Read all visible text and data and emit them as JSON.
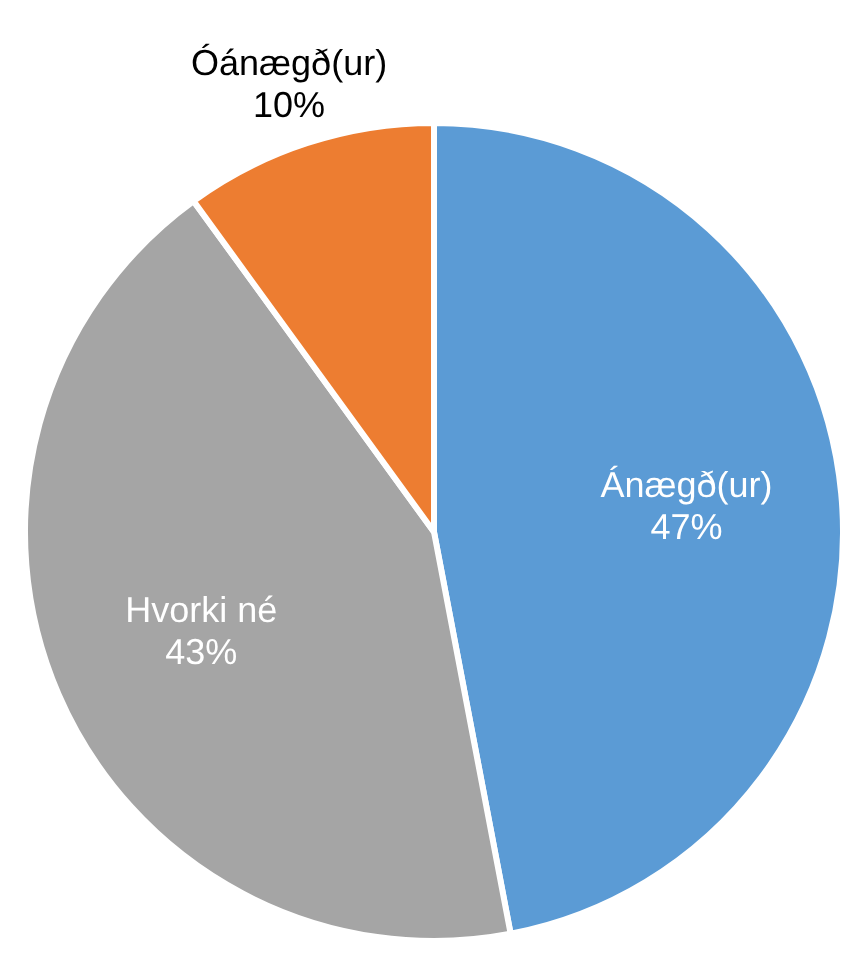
{
  "chart_data": {
    "type": "pie",
    "categories": [
      "Ánægð(ur)",
      "Hvorki né",
      "Óánægð(ur)"
    ],
    "values": [
      47,
      43,
      10
    ],
    "colors": [
      "#5b9bd5",
      "#a5a5a5",
      "#ed7d31"
    ],
    "value_labels": [
      "47%",
      "43%",
      "10%"
    ],
    "legend": false
  }
}
